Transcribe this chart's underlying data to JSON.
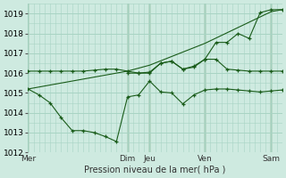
{
  "title": "Pression niveau de la mer( hPa )",
  "background_color": "#ceeae0",
  "grid_color": "#a8d4c4",
  "line_color": "#1a5c1a",
  "ylim": [
    1012,
    1019.5
  ],
  "yticks": [
    1012,
    1013,
    1014,
    1015,
    1016,
    1017,
    1018,
    1019
  ],
  "x_day_labels": [
    "Mer",
    "Dim",
    "Jeu",
    "Ven",
    "Sam"
  ],
  "x_day_positions": [
    0,
    9,
    11,
    16,
    22
  ],
  "series1_x": [
    0,
    1,
    2,
    3,
    4,
    5,
    6,
    7,
    8,
    9,
    10,
    11,
    12,
    13,
    14,
    15,
    16,
    17,
    18,
    19,
    20,
    21,
    22,
    23
  ],
  "series1_y": [
    1015.2,
    1014.9,
    1014.5,
    1013.75,
    1013.1,
    1013.1,
    1013.0,
    1012.8,
    1012.55,
    1014.8,
    1014.9,
    1015.6,
    1015.05,
    1015.0,
    1014.45,
    1014.9,
    1015.15,
    1015.2,
    1015.2,
    1015.15,
    1015.1,
    1015.05,
    1015.1,
    1015.15
  ],
  "series2_x": [
    0,
    1,
    2,
    3,
    4,
    5,
    6,
    7,
    8,
    9,
    10,
    11,
    12,
    13,
    14,
    15,
    16,
    17,
    18,
    19,
    20,
    21,
    22,
    23
  ],
  "series2_y": [
    1016.1,
    1016.1,
    1016.1,
    1016.1,
    1016.1,
    1016.1,
    1016.15,
    1016.2,
    1016.2,
    1016.1,
    1016.0,
    1016.0,
    1016.5,
    1016.6,
    1016.2,
    1016.3,
    1016.7,
    1016.7,
    1016.2,
    1016.15,
    1016.1,
    1016.1,
    1016.1,
    1016.1
  ],
  "series3_x": [
    0,
    9,
    11,
    16,
    22,
    23
  ],
  "series3_y": [
    1015.2,
    1016.1,
    1016.4,
    1017.5,
    1019.1,
    1019.2
  ],
  "series4_x": [
    9,
    10,
    11,
    12,
    13,
    14,
    15,
    16,
    17,
    18,
    19,
    20,
    21,
    22,
    23
  ],
  "series4_y": [
    1016.0,
    1016.0,
    1016.05,
    1016.5,
    1016.6,
    1016.2,
    1016.35,
    1016.7,
    1017.55,
    1017.55,
    1018.0,
    1017.75,
    1019.05,
    1019.2,
    1019.2
  ]
}
